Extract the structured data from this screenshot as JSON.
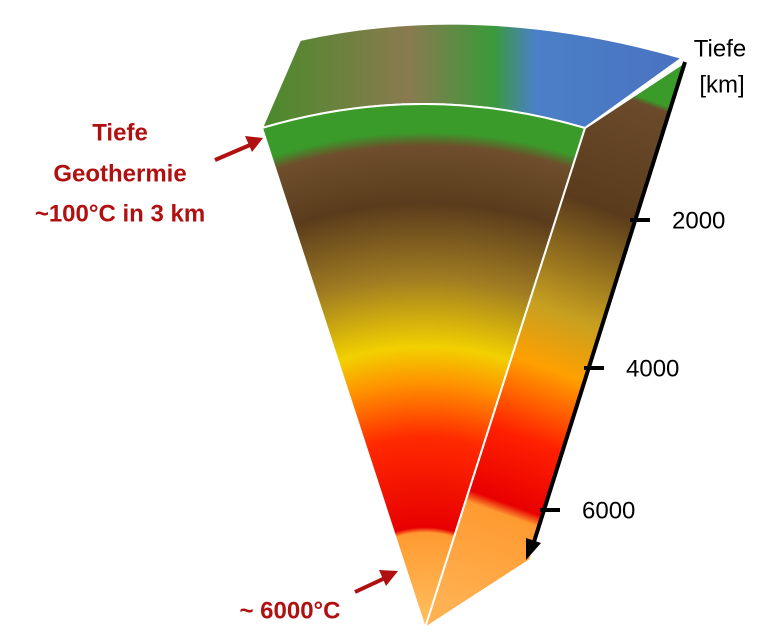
{
  "labels": {
    "geothermie": [
      "Tiefe",
      "Geothermie",
      "~100°C in 3 km"
    ],
    "core": "~ 6000°C"
  },
  "axis": {
    "title": [
      "Tiefe",
      "[km]"
    ],
    "ticks": [
      "2000",
      "4000",
      "6000"
    ]
  }
}
